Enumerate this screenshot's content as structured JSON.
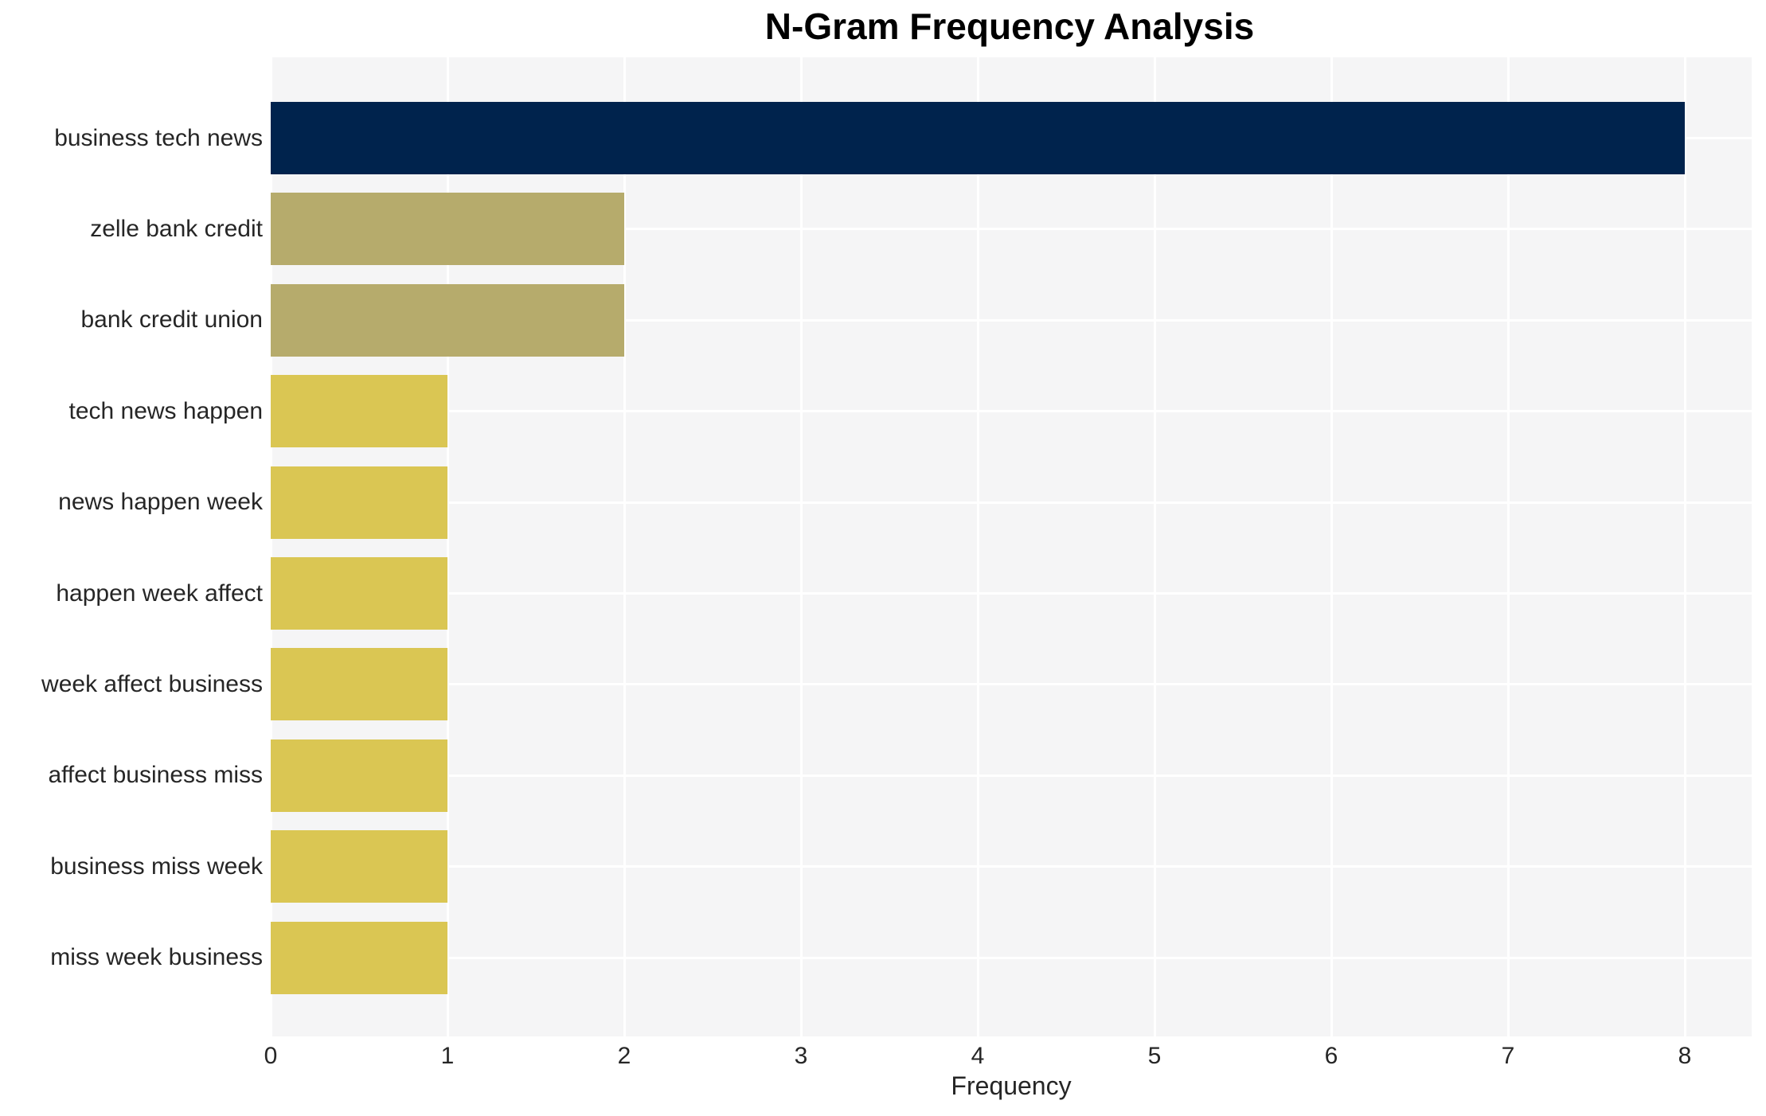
{
  "chart_data": {
    "type": "bar",
    "orientation": "horizontal",
    "title": "N-Gram Frequency Analysis",
    "xlabel": "Frequency",
    "ylabel": "",
    "categories": [
      "business tech news",
      "zelle bank credit",
      "bank credit union",
      "tech news happen",
      "news happen week",
      "happen week affect",
      "week affect business",
      "affect business miss",
      "business miss week",
      "miss week business"
    ],
    "values": [
      8,
      2,
      2,
      1,
      1,
      1,
      1,
      1,
      1,
      1
    ],
    "bar_colors": [
      "#00234d",
      "#b6ab6c",
      "#b6ab6c",
      "#dac653",
      "#dac653",
      "#dac653",
      "#dac653",
      "#dac653",
      "#dac653",
      "#dac653"
    ],
    "xlim": [
      0,
      8
    ],
    "xticks": [
      0,
      1,
      2,
      3,
      4,
      5,
      6,
      7,
      8
    ],
    "grid": true,
    "legend": false,
    "colors": {
      "plot_background": "#f5f5f6",
      "gridline": "#ffffff",
      "text": "#262626",
      "title_text": "#000000",
      "page_background": "#ffffff"
    }
  }
}
